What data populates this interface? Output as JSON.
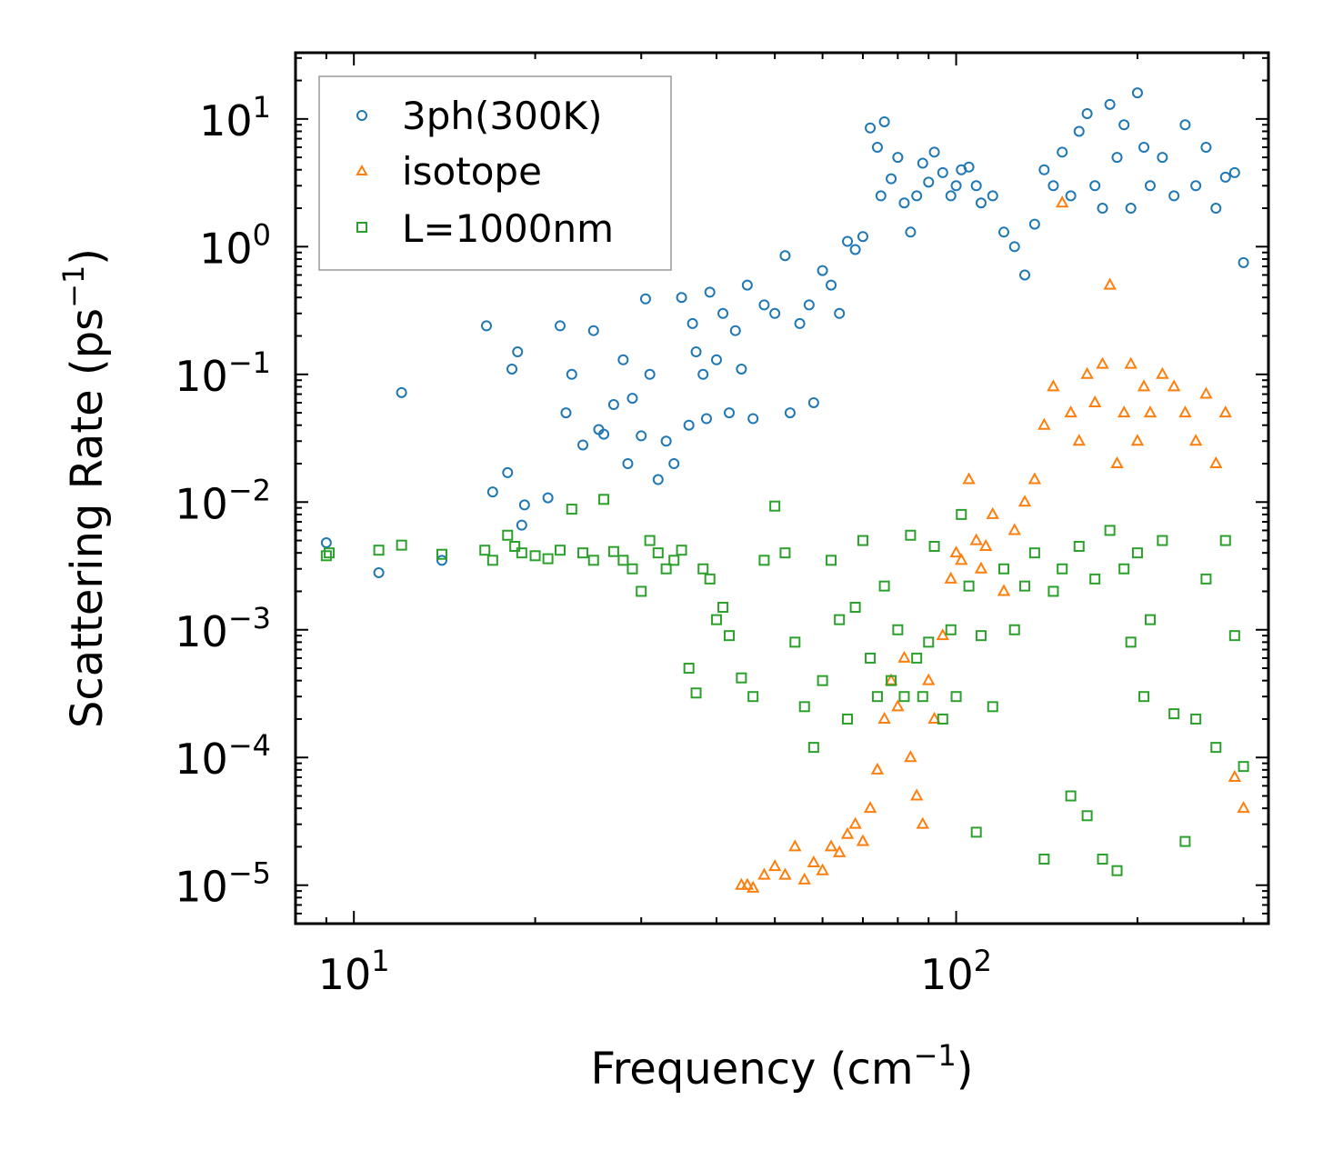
{
  "chart_data": {
    "type": "scatter",
    "xscale": "log",
    "yscale": "log",
    "xlabel": "Frequency (cm",
    "xlabel_sup": "−1",
    "xlabel_suffix": ")",
    "ylabel": "Scattering Rate (ps",
    "ylabel_sup": "−1",
    "ylabel_suffix": ")",
    "xlim": [
      8,
      330
    ],
    "ylim": [
      5e-06,
      33
    ],
    "xticks": [
      {
        "base": "10",
        "exp": "1",
        "value": 10
      },
      {
        "base": "10",
        "exp": "2",
        "value": 100
      }
    ],
    "yticks": [
      {
        "base": "10",
        "exp": "1",
        "value": 10
      },
      {
        "base": "10",
        "exp": "0",
        "value": 1
      },
      {
        "base": "10",
        "exp": "−1",
        "value": 0.1
      },
      {
        "base": "10",
        "exp": "−2",
        "value": 0.01
      },
      {
        "base": "10",
        "exp": "−3",
        "value": 0.001
      },
      {
        "base": "10",
        "exp": "−4",
        "value": 0.0001
      },
      {
        "base": "10",
        "exp": "−5",
        "value": 1e-05
      }
    ],
    "legend_position": "top-left",
    "series": [
      {
        "name": "3ph(300K)",
        "marker": "circle",
        "color": "#1f77b4",
        "x": [
          9,
          11,
          12,
          14,
          16.6,
          17,
          18,
          18.3,
          18.7,
          19,
          19.2,
          21,
          22,
          22.5,
          23,
          24,
          25,
          25.5,
          26,
          27,
          28,
          28.5,
          29,
          30,
          30.5,
          31,
          32,
          33,
          34,
          35,
          36,
          36.5,
          37,
          38,
          38.5,
          39,
          40,
          41,
          42,
          43,
          44,
          45,
          46,
          48,
          50,
          52,
          53,
          55,
          57,
          58,
          60,
          62,
          64,
          66,
          68,
          70,
          72,
          74,
          75,
          76,
          78,
          80,
          82,
          84,
          86,
          88,
          90,
          92,
          95,
          98,
          100,
          102,
          105,
          108,
          110,
          115,
          120,
          125,
          130,
          135,
          140,
          145,
          150,
          155,
          160,
          165,
          170,
          175,
          180,
          185,
          190,
          195,
          200,
          205,
          210,
          220,
          230,
          240,
          250,
          260,
          270,
          280,
          290,
          300
        ],
        "y": [
          0.0048,
          0.0028,
          0.072,
          0.0035,
          0.24,
          0.012,
          0.017,
          0.11,
          0.15,
          0.0066,
          0.0095,
          0.0108,
          0.24,
          0.05,
          0.1,
          0.028,
          0.22,
          0.037,
          0.034,
          0.058,
          0.13,
          0.02,
          0.065,
          0.033,
          0.39,
          0.1,
          0.015,
          0.03,
          0.02,
          0.4,
          0.04,
          0.25,
          0.15,
          0.1,
          0.045,
          0.44,
          0.13,
          0.3,
          0.05,
          0.22,
          0.11,
          0.5,
          0.045,
          0.35,
          0.3,
          0.85,
          0.05,
          0.25,
          0.35,
          0.06,
          0.65,
          0.5,
          0.3,
          1.1,
          0.95,
          1.2,
          8.5,
          6,
          2.5,
          9.5,
          3.4,
          5,
          2.2,
          1.3,
          2.5,
          4.5,
          3.2,
          5.5,
          3.8,
          2.5,
          3,
          4,
          4.2,
          3,
          2.2,
          2.5,
          1.3,
          1.0,
          0.6,
          1.5,
          4,
          3,
          5.5,
          2.5,
          8,
          11,
          3,
          2,
          13,
          5,
          9,
          2,
          16,
          6,
          3,
          5,
          2.5,
          9,
          3,
          6,
          2,
          3.5,
          3.8,
          0.75
        ]
      },
      {
        "name": "isotope",
        "marker": "triangle",
        "color": "#ff7f0e",
        "x": [
          44,
          45,
          46,
          48,
          50,
          52,
          54,
          56,
          58,
          60,
          62,
          64,
          66,
          68,
          70,
          72,
          74,
          76,
          78,
          80,
          82,
          84,
          86,
          88,
          90,
          92,
          95,
          98,
          100,
          102,
          105,
          108,
          110,
          112,
          115,
          120,
          125,
          130,
          135,
          140,
          145,
          150,
          155,
          160,
          165,
          170,
          175,
          180,
          185,
          190,
          195,
          200,
          205,
          210,
          220,
          230,
          240,
          250,
          260,
          270,
          280,
          290,
          300
        ],
        "y": [
          1e-05,
          1e-05,
          9.5e-06,
          1.2e-05,
          1.4e-05,
          1.2e-05,
          2e-05,
          1.1e-05,
          1.5e-05,
          1.3e-05,
          2e-05,
          1.8e-05,
          2.5e-05,
          3e-05,
          2.2e-05,
          4e-05,
          8e-05,
          0.0002,
          0.0004,
          0.00025,
          0.0006,
          0.0001,
          5e-05,
          3e-05,
          0.0004,
          0.0002,
          0.0009,
          0.0025,
          0.004,
          0.0035,
          0.015,
          0.005,
          0.003,
          0.0045,
          0.008,
          0.002,
          0.006,
          0.01,
          0.015,
          0.04,
          0.08,
          2.2,
          0.05,
          0.03,
          0.1,
          0.06,
          0.12,
          0.5,
          0.02,
          0.05,
          0.12,
          0.03,
          0.08,
          0.05,
          0.1,
          0.08,
          0.05,
          0.03,
          0.07,
          0.02,
          0.05,
          7e-05,
          4e-05
        ]
      },
      {
        "name": "L=1000nm",
        "marker": "square",
        "color": "#2ca02c",
        "x": [
          9,
          9.1,
          11,
          12,
          14,
          16.5,
          17,
          18,
          18.5,
          19,
          20,
          21,
          22,
          23,
          24,
          25,
          26,
          27,
          28,
          29,
          30,
          31,
          32,
          33,
          34,
          35,
          36,
          37,
          38,
          39,
          40,
          41,
          42,
          44,
          46,
          48,
          50,
          52,
          54,
          56,
          58,
          60,
          62,
          64,
          66,
          68,
          70,
          72,
          74,
          76,
          78,
          80,
          82,
          84,
          86,
          88,
          90,
          92,
          95,
          98,
          100,
          102,
          105,
          108,
          110,
          115,
          120,
          125,
          130,
          135,
          140,
          145,
          150,
          155,
          160,
          165,
          170,
          175,
          180,
          185,
          190,
          195,
          200,
          205,
          210,
          220,
          230,
          240,
          250,
          260,
          270,
          280,
          290,
          300
        ],
        "y": [
          0.0038,
          0.004,
          0.0042,
          0.0046,
          0.0039,
          0.0042,
          0.0035,
          0.0055,
          0.0045,
          0.004,
          0.0038,
          0.0036,
          0.0042,
          0.0088,
          0.004,
          0.0035,
          0.0105,
          0.0041,
          0.0035,
          0.003,
          0.002,
          0.005,
          0.004,
          0.003,
          0.0035,
          0.0042,
          0.0005,
          0.00032,
          0.003,
          0.0025,
          0.0012,
          0.0015,
          0.0009,
          0.00042,
          0.0003,
          0.0035,
          0.0093,
          0.004,
          0.0008,
          0.00025,
          0.00012,
          0.0004,
          0.0035,
          0.0012,
          0.0002,
          0.0015,
          0.005,
          0.0006,
          0.0003,
          0.0022,
          0.0004,
          0.001,
          0.0003,
          0.0055,
          0.0006,
          0.0003,
          0.0008,
          0.0045,
          0.0002,
          0.001,
          0.0003,
          0.008,
          0.0022,
          2.6e-05,
          0.0009,
          0.00025,
          0.003,
          0.001,
          0.0022,
          0.004,
          1.6e-05,
          0.002,
          0.003,
          5e-05,
          0.0045,
          3.5e-05,
          0.0025,
          1.6e-05,
          0.006,
          1.3e-05,
          0.003,
          0.0008,
          0.004,
          0.0003,
          0.0012,
          0.005,
          0.00022,
          2.2e-05,
          0.0002,
          0.0025,
          0.00012,
          0.005,
          0.0009,
          8.5e-05
        ]
      }
    ]
  }
}
